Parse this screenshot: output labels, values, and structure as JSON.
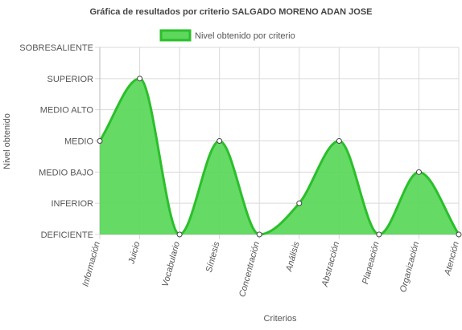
{
  "chart_data": {
    "type": "area",
    "title": "Gráfica de resultados por criterio SALGADO MORENO ADAN JOSE",
    "xlabel": "Criterios",
    "ylabel": "Nivel obtenido",
    "y_levels": [
      "DEFICIENTE",
      "INFERIOR",
      "MEDIO BAJO",
      "MEDIO",
      "MEDIO ALTO",
      "SUPERIOR",
      "SOBRESALIENTE"
    ],
    "ylim": [
      0,
      6
    ],
    "categories": [
      "Información",
      "Juicio",
      "Vocabulario",
      "Síntesis",
      "Concentración",
      "Análisis",
      "Abstracción",
      "Planeación",
      "Organización",
      "Atención"
    ],
    "series": [
      {
        "name": "Nivel obtenido por criterio",
        "values": [
          3,
          5,
          0,
          3,
          0,
          1,
          3,
          0,
          2,
          0
        ]
      }
    ],
    "legend_position": "top",
    "grid": true,
    "colors": {
      "line": "#2bbf2b",
      "fill": "#5dd85d",
      "point_fill": "#ffffff",
      "point_stroke": "#444444",
      "grid": "#d9d9d9"
    }
  }
}
